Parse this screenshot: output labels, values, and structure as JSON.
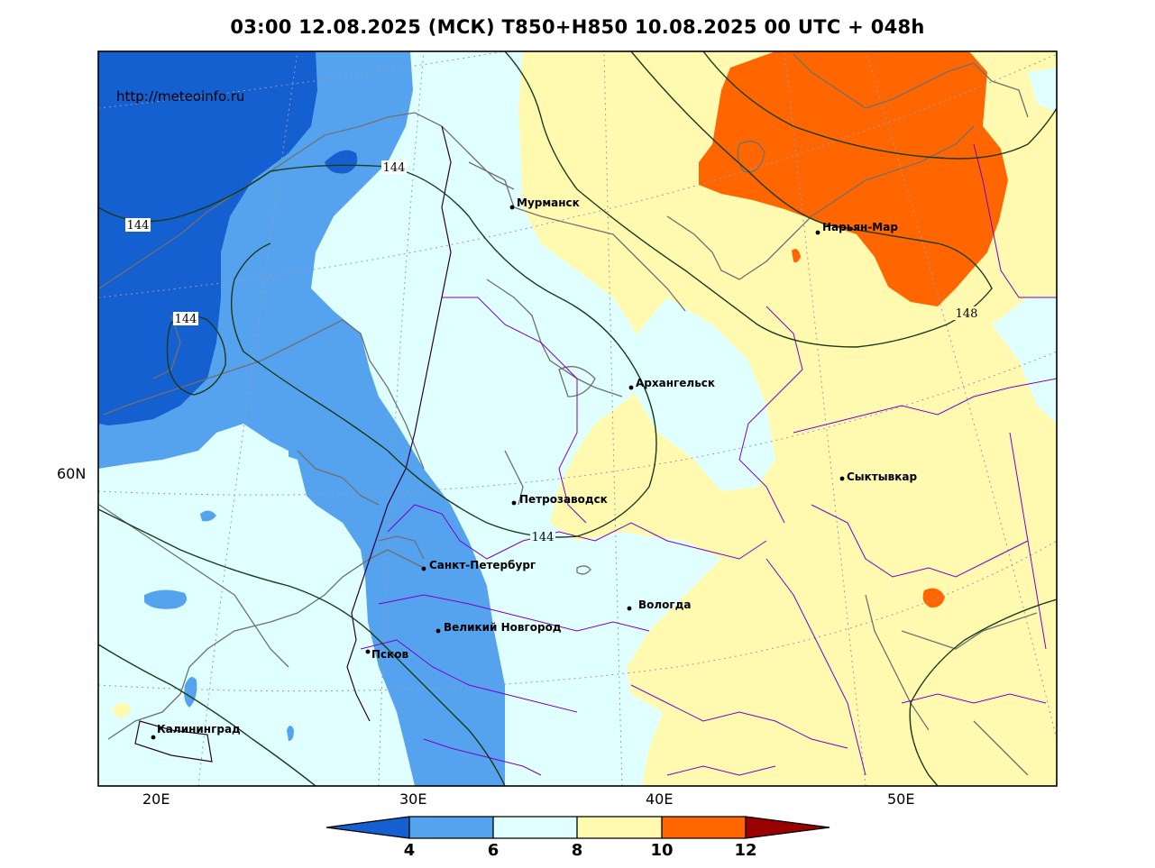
{
  "title": "03:00 12.08.2025 (МСК) T850+H850 10.08.2025 00 UTC + 048h",
  "source_url": "http://meteoinfo.ru",
  "axes": {
    "lon_ticks": [
      "20E",
      "30E",
      "40E",
      "50E"
    ],
    "lat_ticks": [
      "60N"
    ]
  },
  "cities": [
    {
      "name": "Мурманск"
    },
    {
      "name": "Нарьян-Мар"
    },
    {
      "name": "Архангельск"
    },
    {
      "name": "Сыктывкар"
    },
    {
      "name": "Петрозаводск"
    },
    {
      "name": "Санкт-Петербург"
    },
    {
      "name": "Вологда"
    },
    {
      "name": "Великий Новгород"
    },
    {
      "name": "Псков"
    },
    {
      "name": "Калининград"
    }
  ],
  "isohypse_labels": [
    "144",
    "144",
    "144",
    "144",
    "148"
  ],
  "colorbar": {
    "ticks": [
      "4",
      "6",
      "8",
      "10",
      "12"
    ],
    "colors": {
      "below_4": "#1560d0",
      "4_6": "#55a3ee",
      "6_8": "#e0ffff",
      "8_10": "#fffab0",
      "10_12": "#ff6600",
      "above_12": "#990000"
    }
  },
  "colors": {
    "coastline": "#707070",
    "borders": "#7b00c8",
    "isohypse": "#1a3a1a"
  }
}
